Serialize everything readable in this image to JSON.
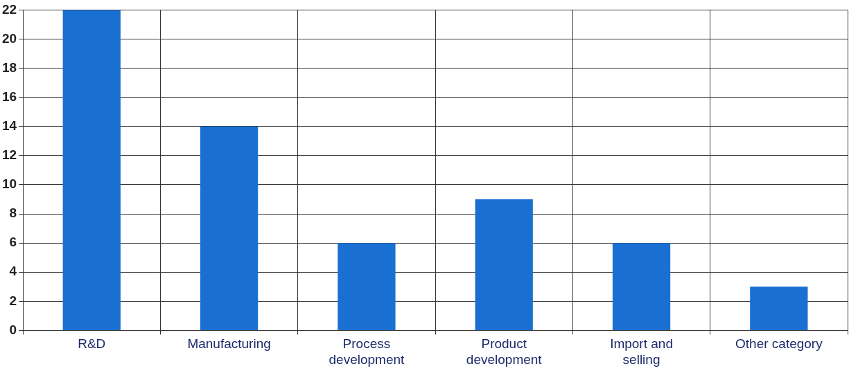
{
  "chart_data": {
    "type": "bar",
    "categories": [
      "R&D",
      "Manufacturing",
      "Process development",
      "Product development",
      "Import and selling",
      "Other category"
    ],
    "values": [
      22,
      14,
      6,
      9,
      6,
      3
    ],
    "color": "#1a70d2",
    "ylim": [
      0,
      22
    ],
    "yticks": [
      0,
      2,
      4,
      6,
      8,
      10,
      12,
      14,
      16,
      18,
      20,
      22
    ],
    "grid": true,
    "legend": false
  }
}
